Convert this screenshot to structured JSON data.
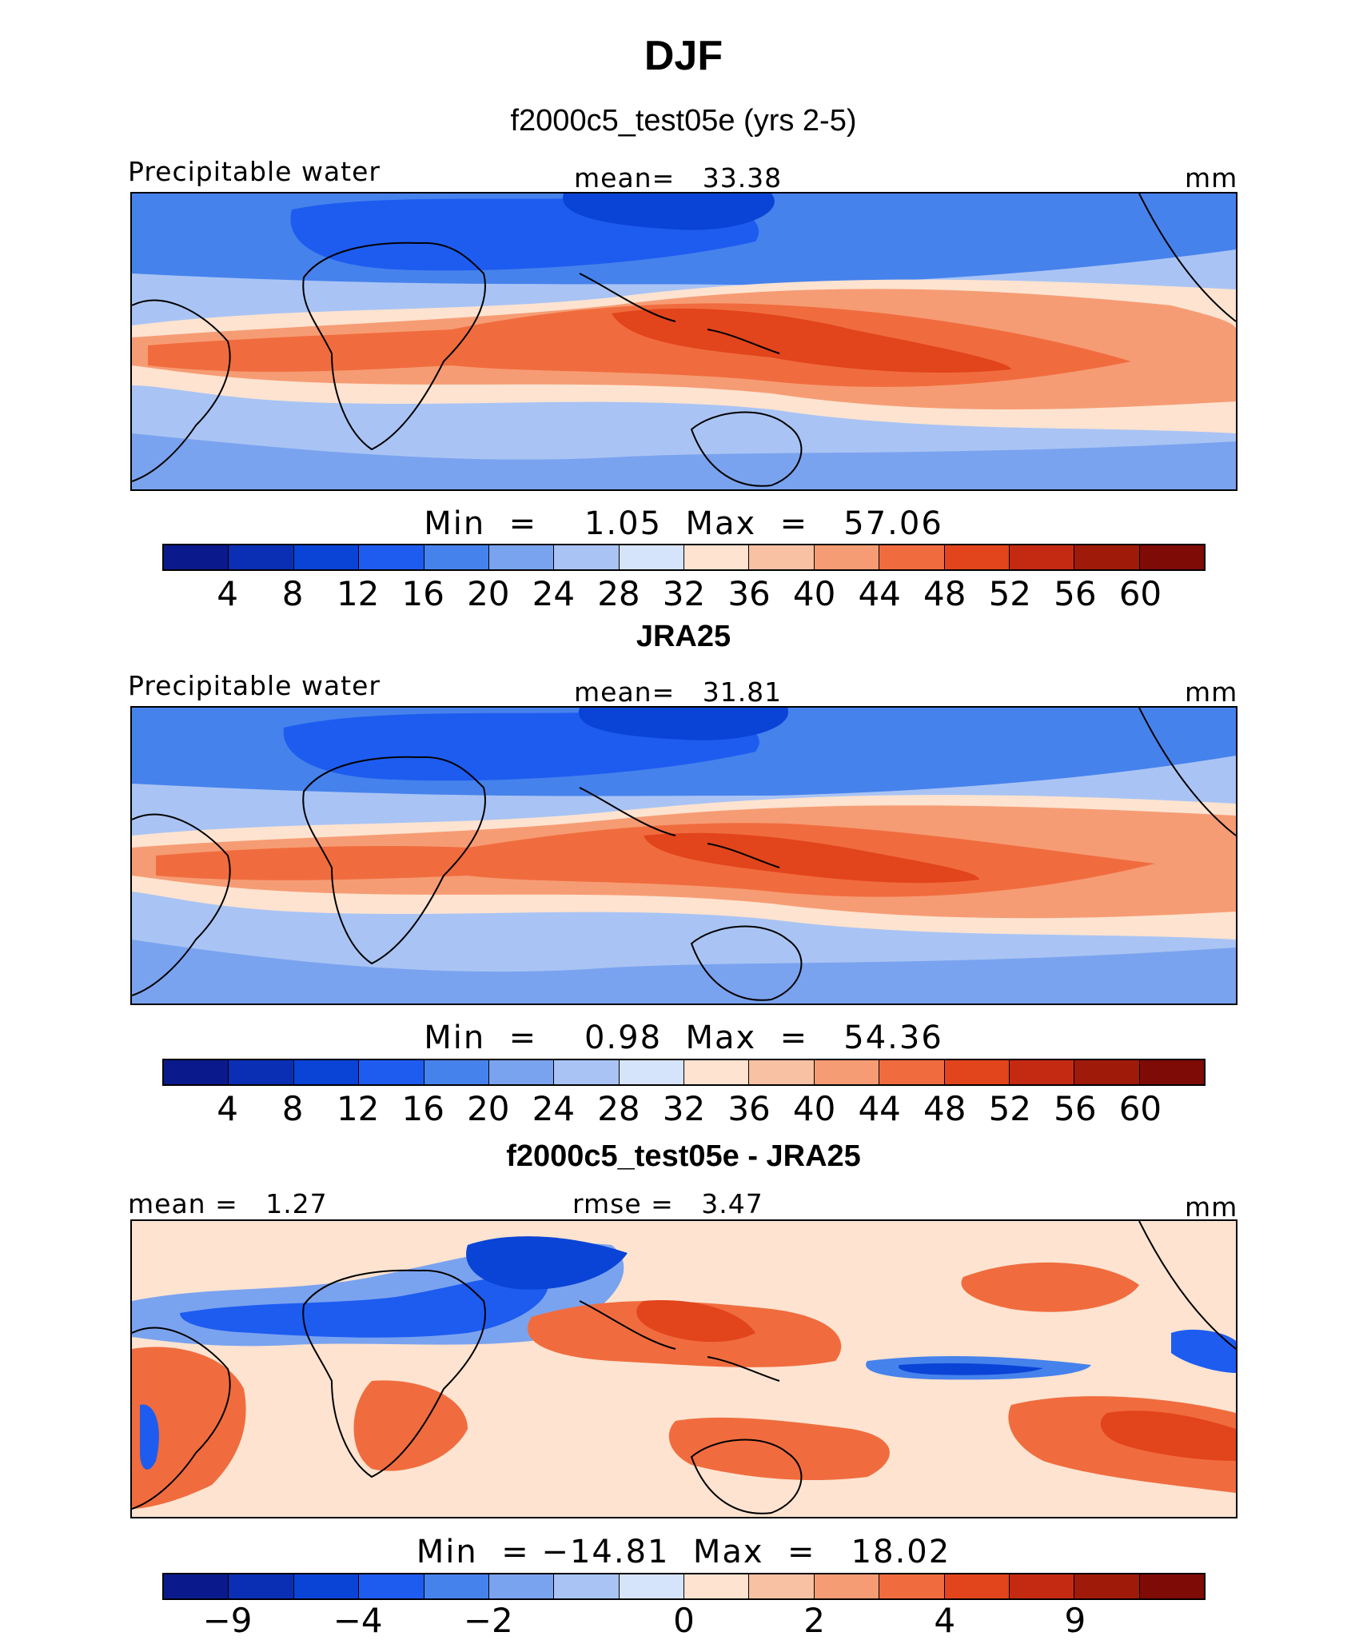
{
  "title": "DJF",
  "palette": [
    "#0a1a8c",
    "#0a2fb4",
    "#0a44d6",
    "#1e5cf0",
    "#4682ec",
    "#7aa3ef",
    "#a9c4f4",
    "#d5e4fa",
    "#fde3d0",
    "#f9c1a3",
    "#f69c74",
    "#f06c3e",
    "#e2441c",
    "#c42a12",
    "#a01a0a",
    "#7e0b06"
  ],
  "panels": [
    {
      "title": "f2000c5_test05e (yrs 2-5)",
      "left_label": "Precipitable water",
      "center_label": "mean=   33.38",
      "units": "mm",
      "minmax": "Min  =    1.05  Max  =   57.06",
      "ticks": [
        "4",
        "8",
        "12",
        "16",
        "20",
        "24",
        "28",
        "32",
        "36",
        "40",
        "44",
        "48",
        "52",
        "56",
        "60"
      ]
    },
    {
      "title": "JRA25",
      "left_label": "Precipitable water",
      "center_label": "mean=   31.81",
      "units": "mm",
      "minmax": "Min  =    0.98  Max  =   54.36",
      "ticks": [
        "4",
        "8",
        "12",
        "16",
        "20",
        "24",
        "28",
        "32",
        "36",
        "40",
        "44",
        "48",
        "52",
        "56",
        "60"
      ]
    },
    {
      "title": "f2000c5_test05e - JRA25",
      "left_label": "mean =   1.27",
      "center_label": "rmse =   3.47",
      "units": "mm",
      "minmax": "Min  = −14.81  Max  =   18.02",
      "ticks": [
        "−9",
        "",
        "−4",
        "",
        "−2",
        "",
        "",
        "0",
        "",
        "2",
        "",
        "4",
        "",
        "9",
        ""
      ]
    }
  ]
}
